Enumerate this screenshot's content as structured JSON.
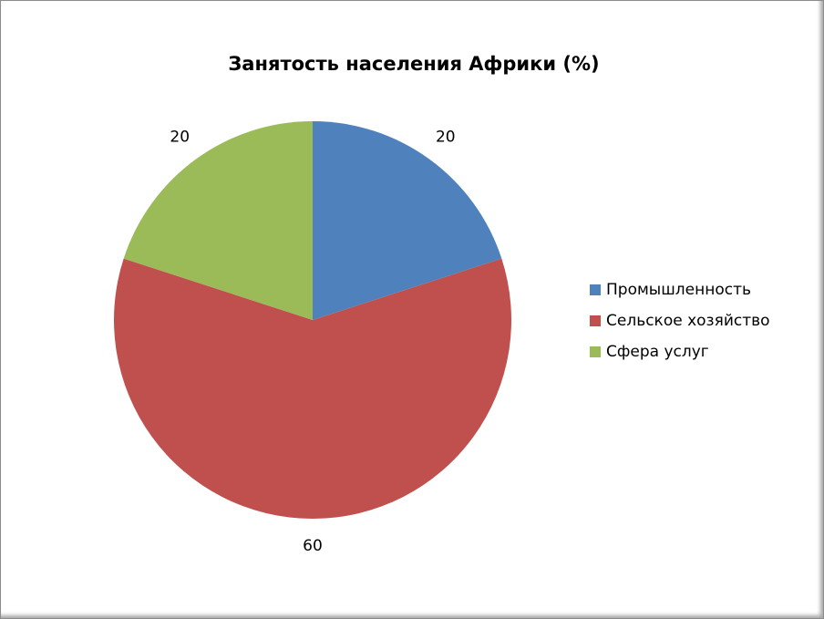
{
  "chart_data": {
    "type": "pie",
    "title": "Занятость населения Африки (%)",
    "categories": [
      "Промышленность",
      "Сельское хозяйство",
      "Сфера услуг"
    ],
    "values": [
      20,
      60,
      20
    ],
    "colors": [
      "#4f81bd",
      "#c0504d",
      "#9bbb59"
    ],
    "legend": "right"
  }
}
